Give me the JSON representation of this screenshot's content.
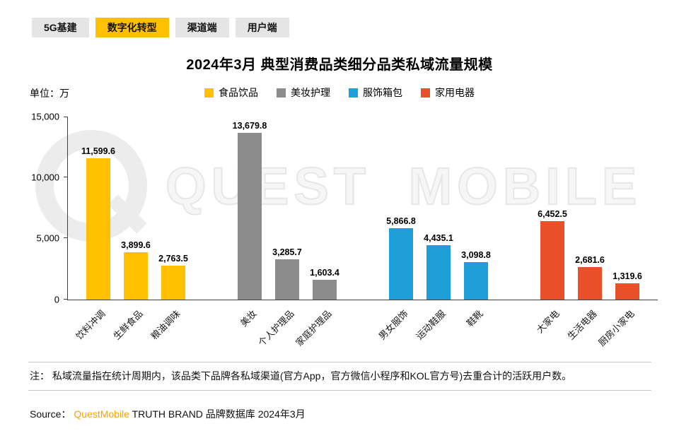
{
  "tabs": [
    {
      "label": "5G基建",
      "active": false
    },
    {
      "label": "数字化转型",
      "active": true
    },
    {
      "label": "渠道端",
      "active": false
    },
    {
      "label": "用户端",
      "active": false
    }
  ],
  "title": "2024年3月 典型消费品类细分品类私域流量规模",
  "unit_label": "单位：万",
  "legend": [
    {
      "label": "食品饮品",
      "color": "#FFC000"
    },
    {
      "label": "美妆护理",
      "color": "#8C8C8C"
    },
    {
      "label": "服饰箱包",
      "color": "#1E9FD9"
    },
    {
      "label": "家用电器",
      "color": "#E8502A"
    }
  ],
  "watermark_text": "QUEST MOBILE",
  "chart_data": {
    "type": "bar",
    "title": "2024年3月 典型消费品类细分品类私域流量规模",
    "ylabel": "单位：万",
    "ylim": [
      0,
      15000
    ],
    "yticks": [
      "0",
      "5,000",
      "10,000",
      "15,000"
    ],
    "grid": false,
    "legend_position": "top-center",
    "groups": [
      {
        "name": "食品饮品",
        "color": "#FFC000",
        "bars": [
          {
            "category": "饮料冲调",
            "value": 11599.6,
            "label": "11,599.6"
          },
          {
            "category": "生鲜食品",
            "value": 3899.6,
            "label": "3,899.6"
          },
          {
            "category": "粮油调味",
            "value": 2763.5,
            "label": "2,763.5"
          }
        ]
      },
      {
        "name": "美妆护理",
        "color": "#8C8C8C",
        "bars": [
          {
            "category": "美妆",
            "value": 13679.8,
            "label": "13,679.8"
          },
          {
            "category": "个人护理品",
            "value": 3285.7,
            "label": "3,285.7"
          },
          {
            "category": "家庭护理品",
            "value": 1603.4,
            "label": "1,603.4"
          }
        ]
      },
      {
        "name": "服饰箱包",
        "color": "#1E9FD9",
        "bars": [
          {
            "category": "男女服饰",
            "value": 5866.8,
            "label": "5,866.8"
          },
          {
            "category": "运动鞋服",
            "value": 4435.1,
            "label": "4,435.1"
          },
          {
            "category": "鞋靴",
            "value": 3098.8,
            "label": "3,098.8"
          }
        ]
      },
      {
        "name": "家用电器",
        "color": "#E8502A",
        "bars": [
          {
            "category": "大家电",
            "value": 6452.5,
            "label": "6,452.5"
          },
          {
            "category": "生活电器",
            "value": 2681.6,
            "label": "2,681.6"
          },
          {
            "category": "厨房小家电",
            "value": 1319.6,
            "label": "1,319.6"
          }
        ]
      }
    ]
  },
  "note": "注： 私域流量指在统计周期内，该品类下品牌各私域渠道(官方App，官方微信小程序和KOL官方号)去重合计的活跃用户数。",
  "source": {
    "prefix": "Source：",
    "brand": "QuestMobile",
    "rest": " TRUTH BRAND 品牌数据库 2024年3月"
  }
}
